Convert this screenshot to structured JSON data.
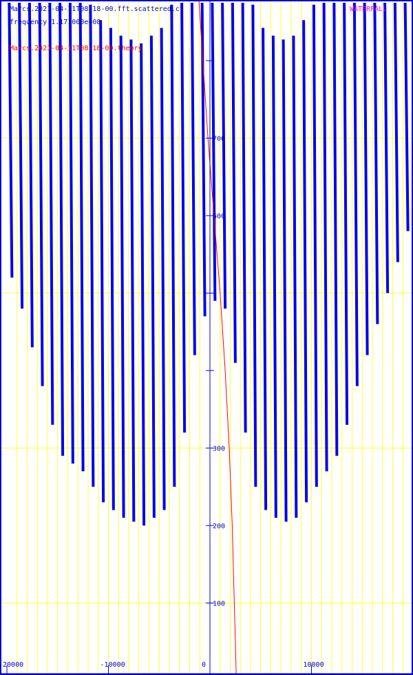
{
  "chart_data": {
    "type": "scatter",
    "title": "Marcs.2021-04-11T08-18-00.fft.scattered.cf",
    "subtitle": "frequency 1.171000e+08",
    "mode_label": "WATERFALL",
    "xlim": [
      -20500,
      20500
    ],
    "ylim": [
      0,
      1300
    ],
    "x_ticks": [
      -20000,
      -10000,
      0,
      10000
    ],
    "y_ticks": [
      100,
      200,
      300,
      400,
      500,
      600,
      700,
      800
    ],
    "y_tick_labels_shown": [
      "100",
      "200",
      "300",
      "600",
      "700"
    ],
    "x_gridlines": [
      -19000,
      -18000,
      -17000,
      -16000,
      -15000,
      -14000,
      -13000,
      -12000,
      -11000,
      -10000,
      -9000,
      -8000,
      -7000,
      -6000,
      -5000,
      -4000,
      -3000,
      -2000,
      -1000,
      0,
      1000,
      2000,
      3000,
      4000,
      5000,
      6000,
      7000,
      8000,
      9000,
      10000,
      11000,
      12000,
      13000,
      14000,
      15000,
      16000,
      17000,
      18000,
      19000,
      20000
    ],
    "y_gridlines": [
      100,
      300,
      500,
      700,
      900,
      1100,
      1300
    ],
    "grid": true,
    "series": [
      {
        "name": "Marcs.2021-04-11T08-18-00.fft.scattered.cf",
        "color": "#0000ee",
        "points": [
          [
            -19500,
            520
          ],
          [
            -18500,
            480
          ],
          [
            -17500,
            430
          ],
          [
            -16500,
            380
          ],
          [
            -15500,
            330
          ],
          [
            -14500,
            290
          ],
          [
            -13500,
            280
          ],
          [
            -12500,
            270
          ],
          [
            -11500,
            250
          ],
          [
            -10500,
            230
          ],
          [
            -9500,
            220
          ],
          [
            -8500,
            210
          ],
          [
            -7500,
            205
          ],
          [
            -6500,
            200
          ],
          [
            -5500,
            210
          ],
          [
            -4500,
            220
          ],
          [
            -3500,
            250
          ],
          [
            -2500,
            320
          ],
          [
            -1500,
            420
          ],
          [
            -500,
            470
          ],
          [
            500,
            490
          ],
          [
            1500,
            480
          ],
          [
            2500,
            410
          ],
          [
            3500,
            320
          ],
          [
            4500,
            250
          ],
          [
            5500,
            220
          ],
          [
            6500,
            210
          ],
          [
            7500,
            205
          ],
          [
            8500,
            210
          ],
          [
            9500,
            230
          ],
          [
            10500,
            250
          ],
          [
            11500,
            270
          ],
          [
            12500,
            290
          ],
          [
            13500,
            330
          ],
          [
            14500,
            380
          ],
          [
            15500,
            420
          ],
          [
            16500,
            460
          ],
          [
            17500,
            500
          ],
          [
            18500,
            540
          ],
          [
            19500,
            580
          ]
        ]
      },
      {
        "name": "Marcs.2021-04-11T08-18-00.theory",
        "color": "#ff0000",
        "points": [
          [
            -3200,
            1300
          ],
          [
            -2800,
            1200
          ],
          [
            -2400,
            1100
          ],
          [
            -1800,
            1000
          ],
          [
            -1200,
            900
          ],
          [
            -700,
            800
          ],
          [
            -200,
            700
          ],
          [
            400,
            600
          ],
          [
            1000,
            500
          ],
          [
            1500,
            400
          ],
          [
            1900,
            300
          ],
          [
            2200,
            200
          ],
          [
            2400,
            100
          ],
          [
            2600,
            0
          ]
        ]
      }
    ],
    "legend": "top-left"
  }
}
